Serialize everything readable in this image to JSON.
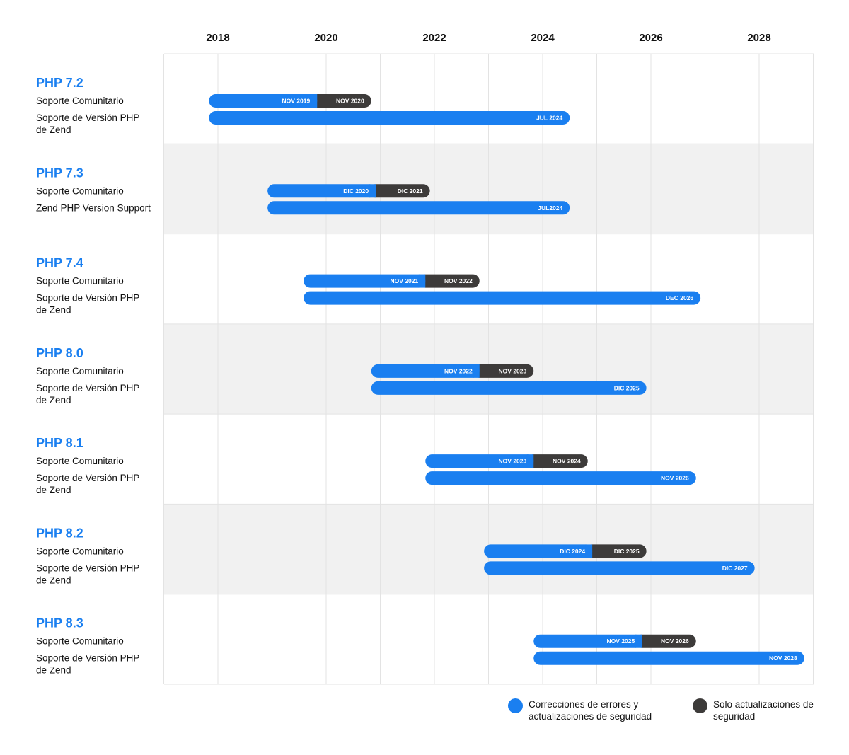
{
  "colors": {
    "blue": "#1a7ff0",
    "dark": "#3d3b3a",
    "band": "#f1f1f1",
    "grid": "#e3e3e3",
    "version": "#1a7ff0"
  },
  "chart_data": {
    "type": "gantt",
    "x_ticks": [
      "2018",
      "2020",
      "2022",
      "2024",
      "2026",
      "2028"
    ],
    "x_range": [
      "2017-01",
      "2029-01"
    ],
    "grid": true,
    "legend_position": "bottom-right",
    "legend": [
      {
        "key": "bugfix",
        "label": "Correcciones de errores y\nactualizaciones de seguridad",
        "color": "#1a7ff0"
      },
      {
        "key": "security",
        "label": "Solo actualizaciones de\nseguridad",
        "color": "#3d3b3a"
      }
    ],
    "versions": [
      {
        "name": "PHP 7.2",
        "rows": [
          {
            "label": "Soporte Comunitario",
            "start": "2017-11",
            "segments": [
              {
                "type": "bugfix",
                "end": "2019-11",
                "label": "NOV 2019"
              },
              {
                "type": "security",
                "end": "2020-11",
                "label": "NOV 2020"
              }
            ]
          },
          {
            "label": "Soporte de Versión PHP\nde Zend",
            "start": "2017-11",
            "segments": [
              {
                "type": "bugfix",
                "end": "2024-07",
                "label": "JUL 2024"
              }
            ]
          }
        ]
      },
      {
        "name": "PHP 7.3",
        "rows": [
          {
            "label": "Soporte Comunitario",
            "start": "2018-12",
            "segments": [
              {
                "type": "bugfix",
                "end": "2020-12",
                "label": "DIC 2020"
              },
              {
                "type": "security",
                "end": "2021-12",
                "label": "DIC 2021"
              }
            ]
          },
          {
            "label": "Zend PHP Version Support",
            "start": "2018-12",
            "segments": [
              {
                "type": "bugfix",
                "end": "2024-07",
                "label": "JUL2024"
              }
            ]
          }
        ]
      },
      {
        "name": "PHP 7.4",
        "rows": [
          {
            "label": "Soporte Comunitario",
            "start": "2019-08",
            "segments": [
              {
                "type": "bugfix",
                "end": "2021-11",
                "label": "NOV 2021"
              },
              {
                "type": "security",
                "end": "2022-11",
                "label": "NOV 2022"
              }
            ]
          },
          {
            "label": "Soporte de Versión PHP\nde Zend",
            "start": "2019-08",
            "segments": [
              {
                "type": "bugfix",
                "end": "2026-12",
                "label": "DEC 2026"
              }
            ]
          }
        ]
      },
      {
        "name": "PHP 8.0",
        "rows": [
          {
            "label": "Soporte Comunitario",
            "start": "2020-11",
            "segments": [
              {
                "type": "bugfix",
                "end": "2022-11",
                "label": "NOV 2022"
              },
              {
                "type": "security",
                "end": "2023-11",
                "label": "NOV 2023"
              }
            ]
          },
          {
            "label": "Soporte de Versión PHP\nde Zend",
            "start": "2020-11",
            "segments": [
              {
                "type": "bugfix",
                "end": "2025-12",
                "label": "DIC 2025"
              }
            ]
          }
        ]
      },
      {
        "name": "PHP 8.1",
        "rows": [
          {
            "label": "Soporte Comunitario",
            "start": "2021-11",
            "segments": [
              {
                "type": "bugfix",
                "end": "2023-11",
                "label": "NOV 2023"
              },
              {
                "type": "security",
                "end": "2024-11",
                "label": "NOV 2024"
              }
            ]
          },
          {
            "label": "Soporte de Versión PHP\nde Zend",
            "start": "2021-11",
            "segments": [
              {
                "type": "bugfix",
                "end": "2026-11",
                "label": "NOV 2026"
              }
            ]
          }
        ]
      },
      {
        "name": "PHP 8.2",
        "rows": [
          {
            "label": "Soporte Comunitario",
            "start": "2022-12",
            "segments": [
              {
                "type": "bugfix",
                "end": "2024-12",
                "label": "DIC 2024"
              },
              {
                "type": "security",
                "end": "2025-12",
                "label": "DIC 2025"
              }
            ]
          },
          {
            "label": "Soporte de Versión PHP\nde Zend",
            "start": "2022-12",
            "segments": [
              {
                "type": "bugfix",
                "end": "2027-12",
                "label": "DIC 2027"
              }
            ]
          }
        ]
      },
      {
        "name": "PHP 8.3",
        "rows": [
          {
            "label": "Soporte Comunitario",
            "start": "2023-11",
            "segments": [
              {
                "type": "bugfix",
                "end": "2025-11",
                "label": "NOV 2025"
              },
              {
                "type": "security",
                "end": "2026-11",
                "label": "NOV 2026"
              }
            ]
          },
          {
            "label": "Soporte de Versión PHP\nde Zend",
            "start": "2023-11",
            "segments": [
              {
                "type": "bugfix",
                "end": "2028-11",
                "label": "NOV 2028"
              }
            ]
          }
        ]
      }
    ]
  }
}
